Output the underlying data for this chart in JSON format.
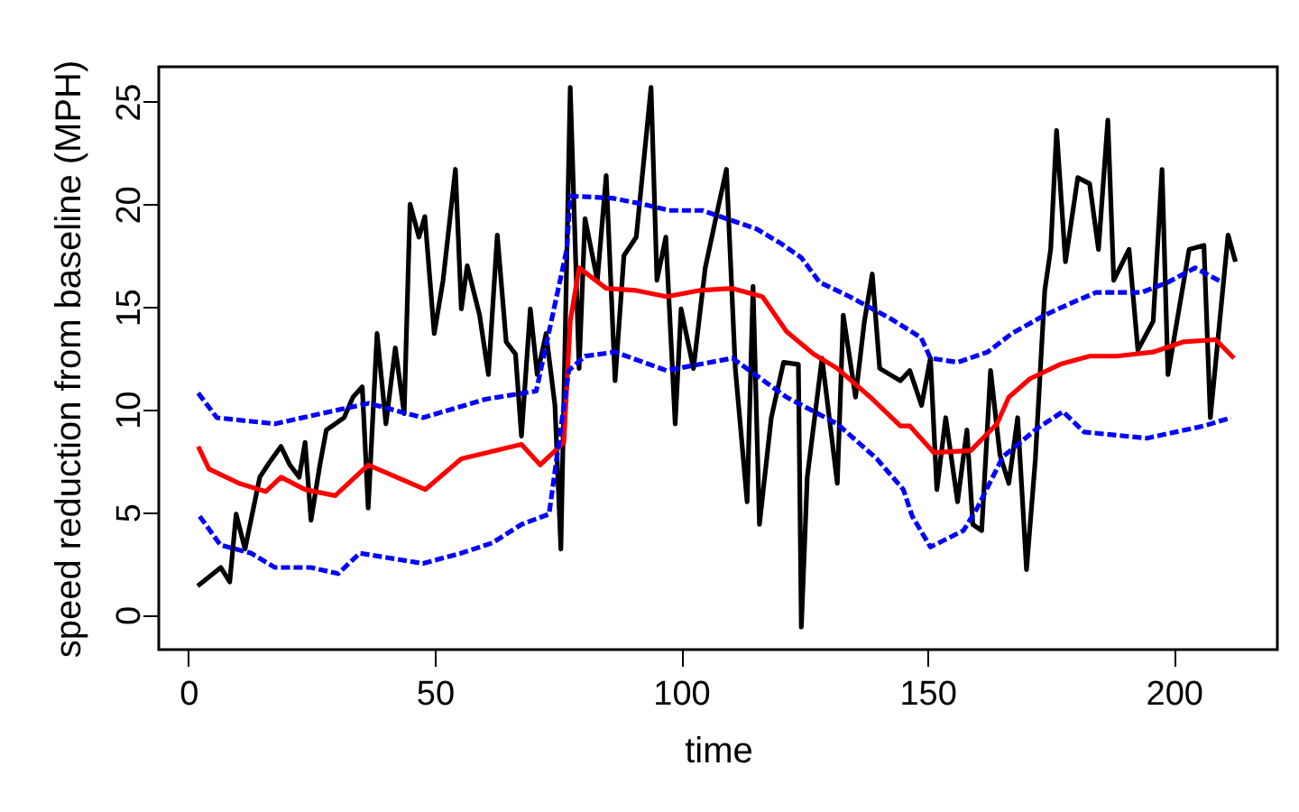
{
  "chart_data": {
    "type": "line",
    "xlabel": "time",
    "ylabel": "speed reduction from baseline (MPH)",
    "xlim": [
      -6,
      221
    ],
    "ylim": [
      -1.7,
      26.7
    ],
    "xticks": [
      0,
      50,
      100,
      150,
      200
    ],
    "yticks": [
      0,
      5,
      10,
      15,
      20,
      25
    ],
    "grid": false,
    "marker": "none",
    "series": [
      {
        "color": "#000000",
        "line_style": "solid",
        "x": [
          1.9,
          6.6,
          8.4,
          9.7,
          11.5,
          14.5,
          16.4,
          18.8,
          20.6,
          22.5,
          23.7,
          24.9,
          26.7,
          28,
          29.8,
          31.6,
          33.4,
          35.3,
          36.5,
          38.3,
          40.1,
          42,
          43.8,
          45,
          46.8,
          48,
          49.9,
          51.7,
          54.2,
          55.4,
          56.6,
          59.1,
          60.9,
          62.7,
          64.5,
          66.4,
          67.6,
          69.4,
          70.8,
          72.6,
          74.4,
          75.6,
          77.5,
          79.3,
          80.5,
          83,
          84.8,
          86.6,
          88.4,
          90.9,
          93.9,
          95.1,
          96.9,
          98.8,
          100,
          102.5,
          104.9,
          107.3,
          109.2,
          111,
          113.4,
          114.6,
          115.9,
          118.3,
          120.8,
          123.8,
          124.4,
          125.6,
          128.6,
          131.7,
          132.9,
          135.4,
          137.2,
          138.8,
          140.3,
          144.5,
          146.4,
          148.8,
          150.6,
          151.9,
          153.7,
          156.1,
          158,
          159.2,
          161,
          162.8,
          164.7,
          166.5,
          168.3,
          170.1,
          171.9,
          173.8,
          175,
          176.2,
          178,
          180.5,
          182.9,
          184.7,
          186.6,
          187.8,
          190.9,
          192.7,
          195.8,
          197.6,
          198.8,
          203.1,
          206.1,
          207.4,
          211,
          212.5
        ],
        "values": [
          1.4,
          2.3,
          1.6,
          4.9,
          3.2,
          6.7,
          7.4,
          8.2,
          7.3,
          6.7,
          8.4,
          4.6,
          7.3,
          9.0,
          9.3,
          9.6,
          10.6,
          11.1,
          5.2,
          13.7,
          9.3,
          13.0,
          9.8,
          20.0,
          18.4,
          19.4,
          13.7,
          16.3,
          21.7,
          14.9,
          17.0,
          14.6,
          11.7,
          18.5,
          13.3,
          12.7,
          8.7,
          14.9,
          11.7,
          13.7,
          10.2,
          3.2,
          25.7,
          12.0,
          19.3,
          16.3,
          21.4,
          11.4,
          17.5,
          18.4,
          25.7,
          16.3,
          18.4,
          9.3,
          14.9,
          12.0,
          16.9,
          19.6,
          21.7,
          12.0,
          5.5,
          16.0,
          4.4,
          9.6,
          12.3,
          12.2,
          -0.6,
          6.7,
          12.5,
          6.4,
          14.6,
          10.6,
          14.3,
          16.6,
          12.0,
          11.4,
          11.9,
          10.2,
          12.5,
          6.1,
          9.6,
          5.5,
          9.0,
          4.4,
          4.1,
          11.9,
          7.8,
          6.4,
          9.6,
          2.2,
          7.6,
          15.8,
          17.8,
          23.6,
          17.2,
          21.3,
          21.0,
          17.8,
          24.1,
          16.3,
          17.8,
          12.9,
          14.3,
          21.7,
          11.7,
          17.8,
          18.0,
          9.6,
          18.5,
          17.2
        ]
      },
      {
        "color": "#ff0000",
        "line_style": "solid",
        "x": [
          2,
          4.2,
          10.3,
          15.7,
          18.8,
          23.7,
          29.8,
          36.5,
          48.1,
          55.4,
          67.6,
          71.4,
          76.2,
          77.5,
          79.3,
          84.8,
          90.9,
          97,
          103.7,
          110.4,
          116.5,
          121.4,
          126.9,
          131.7,
          138.4,
          144.5,
          146.4,
          151.3,
          158.8,
          164.1,
          166.5,
          170.8,
          176.9,
          182.9,
          188.4,
          195.8,
          202,
          208.5,
          212.2
        ],
        "values": [
          8.2,
          7.1,
          6.4,
          6.0,
          6.7,
          6.1,
          5.8,
          7.3,
          6.1,
          7.6,
          8.3,
          7.3,
          8.4,
          14.3,
          16.9,
          15.9,
          15.8,
          15.5,
          15.8,
          15.9,
          15.5,
          13.8,
          12.7,
          12.0,
          10.6,
          9.2,
          9.2,
          7.9,
          8.0,
          9.3,
          10.6,
          11.5,
          12.2,
          12.6,
          12.6,
          12.8,
          13.3,
          13.4,
          12.5
        ]
      },
      {
        "color": "#0000ff",
        "line_style": "dashed",
        "x": [
          2,
          5.8,
          17.6,
          25,
          36.6,
          47.6,
          60.3,
          70.6,
          76.8,
          77.5,
          86,
          92.4,
          97.6,
          104.3,
          115.3,
          120.2,
          124.4,
          128.1,
          134.2,
          142.7,
          148.7,
          150.6,
          156.1,
          162.2,
          167.1,
          173.8,
          179.3,
          184.2,
          193.4,
          198.8,
          204.3,
          209.8
        ],
        "values": [
          10.8,
          9.6,
          9.3,
          9.7,
          10.3,
          9.6,
          10.5,
          10.9,
          17.8,
          20.4,
          20.3,
          20.0,
          19.7,
          19.7,
          18.8,
          18.1,
          17.4,
          16.2,
          15.5,
          14.4,
          13.5,
          12.5,
          12.3,
          12.8,
          13.7,
          14.6,
          15.2,
          15.7,
          15.7,
          16.2,
          16.9,
          16.2
        ]
      },
      {
        "color": "#0000ff",
        "line_style": "dashed",
        "x": [
          2.3,
          6.5,
          12.7,
          17.6,
          24.9,
          30.4,
          34.8,
          47.6,
          55.4,
          61.7,
          67.6,
          73.2,
          77.2,
          80.5,
          86.6,
          97,
          110.4,
          121.4,
          131.7,
          139.7,
          145.1,
          146.9,
          150.6,
          157.3,
          160.1,
          165.3,
          172.4,
          177.5,
          181.8,
          194.5,
          206.1,
          211.6
        ],
        "values": [
          4.8,
          3.4,
          3.0,
          2.3,
          2.3,
          2.0,
          3.0,
          2.5,
          3.0,
          3.5,
          4.4,
          4.9,
          11.9,
          12.6,
          12.8,
          11.9,
          12.5,
          10.6,
          9.3,
          7.6,
          6.1,
          4.8,
          3.3,
          4.1,
          5.2,
          7.7,
          9.1,
          9.9,
          8.9,
          8.6,
          9.2,
          9.6
        ]
      }
    ]
  }
}
